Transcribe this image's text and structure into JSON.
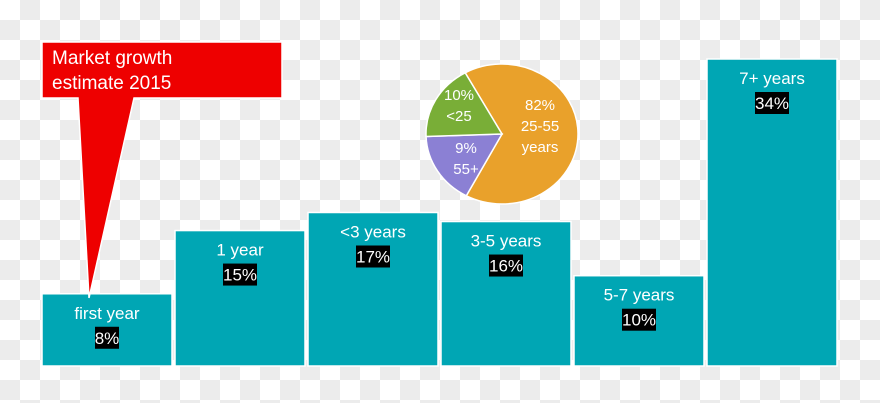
{
  "callout": {
    "line1": "Market growth",
    "line2": "estimate 2015",
    "color": "#ee0000"
  },
  "chart_data": [
    {
      "type": "bar",
      "categories": [
        "first year",
        "1 year",
        "<3 years",
        "3-5 years",
        "5-7 years",
        "7+ years"
      ],
      "values": [
        8,
        15,
        17,
        16,
        10,
        34
      ],
      "value_labels": [
        "8%",
        "15%",
        "17%",
        "16%",
        "10%",
        "34%"
      ],
      "color": "#00a6b4",
      "ylim": [
        0,
        34
      ],
      "grid": false
    },
    {
      "type": "pie",
      "slices": [
        {
          "value": 82,
          "label1": "82%",
          "label2": "25-55",
          "label3": "years",
          "color": "#e9a12b"
        },
        {
          "value": 9,
          "label1": "9%",
          "label2": "55+",
          "color": "#8b80d4"
        },
        {
          "value": 10,
          "label1": "10%",
          "label2": "<25",
          "color": "#79ae37"
        }
      ]
    }
  ]
}
